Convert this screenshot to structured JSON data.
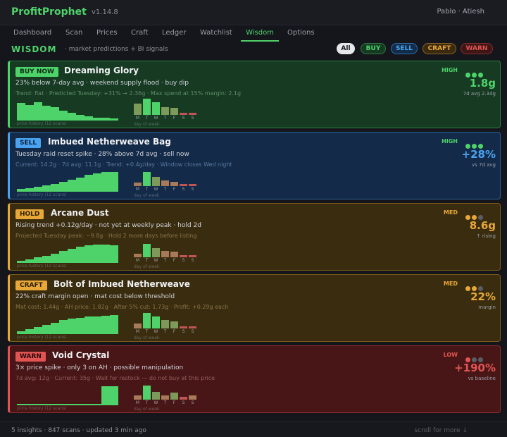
{
  "app": {
    "name": "ProfitProphet",
    "version": "v1.14.8",
    "user": "Pablo · Atiesh"
  },
  "nav": {
    "tabs": [
      "Dashboard",
      "Scan",
      "Prices",
      "Craft",
      "Ledger",
      "Watchlist",
      "Wisdom",
      "Options"
    ],
    "active": "Wisdom"
  },
  "section": {
    "title": "WISDOM",
    "subtitle": "· market predictions + BI signals"
  },
  "filters": [
    "All",
    "BUY",
    "SELL",
    "CRAFT",
    "WARN"
  ],
  "captions": {
    "history": "price history (12 scans)",
    "week": "day of week"
  },
  "weekdays": [
    "M",
    "T",
    "W",
    "T",
    "F",
    "S",
    "S"
  ],
  "colors": {
    "green": "#4ed36a",
    "blue": "#4aa3f0",
    "amber": "#e8a838",
    "red": "#e05454"
  },
  "cards": [
    {
      "badge": "BUY NOW",
      "title": "Dreaming Glory",
      "line1": "23% below 7-day avg · weekend supply flood · buy dip",
      "line2": "Trend: flat · Predicted Tuesday: +31% → 2.36g · Max spend at 15% margin: 2.1g",
      "confidence": "HIGH",
      "confidence_level": 3,
      "value": "1.8g",
      "value_sub": "7d avg 2.34g",
      "history": [
        0.84,
        0.75,
        0.86,
        0.7,
        0.62,
        0.46,
        0.38,
        0.28,
        0.2,
        0.15,
        0.12,
        0.1
      ],
      "week": [
        0.65,
        0.95,
        0.75,
        0.45,
        0.42,
        0.14,
        0.14
      ]
    },
    {
      "badge": "SELL",
      "title": "Imbued Netherweave Bag",
      "line1": "Tuesday raid reset spike · 28% above 7d avg · sell now",
      "line2": "Current: 14.2g · 7d avg: 11.1g · Trend: +0.4g/day · Window closes Wed night",
      "confidence": "HIGH",
      "confidence_level": 3,
      "value": "+28%",
      "value_sub": "vs 7d avg",
      "history": [
        0.12,
        0.17,
        0.25,
        0.3,
        0.36,
        0.46,
        0.56,
        0.66,
        0.8,
        0.88,
        0.92,
        0.92
      ],
      "week": [
        0.22,
        0.82,
        0.55,
        0.33,
        0.25,
        0.12,
        0.12
      ]
    },
    {
      "badge": "HOLD",
      "title": "Arcane Dust",
      "line1": "Rising trend +0.12g/day · not yet at weekly peak · hold 2d",
      "line2": "Projected Tuesday peak: ~9.8g · Hold 2 more days before listing",
      "confidence": "MED",
      "confidence_level": 2,
      "value": "8.6g",
      "value_sub": "↑ rising",
      "history": [
        0.1,
        0.18,
        0.26,
        0.35,
        0.45,
        0.58,
        0.68,
        0.76,
        0.82,
        0.86,
        0.88,
        0.85
      ],
      "week": [
        0.2,
        0.78,
        0.55,
        0.38,
        0.35,
        0.12,
        0.12
      ]
    },
    {
      "badge": "CRAFT",
      "title": "Bolt of Imbued Netherweave",
      "line1": "22% craft margin open · mat cost below threshold",
      "line2": "Mat cost: 1.44g · AH price: 1.82g · After 5% cut: 1.73g · Profit: +0.29g each",
      "confidence": "MED",
      "confidence_level": 2,
      "value": "22%",
      "value_sub": "margin",
      "history": [
        0.15,
        0.25,
        0.33,
        0.42,
        0.55,
        0.66,
        0.74,
        0.78,
        0.82,
        0.85,
        0.88,
        0.9
      ],
      "week": [
        0.3,
        0.9,
        0.72,
        0.48,
        0.42,
        0.12,
        0.12
      ]
    },
    {
      "badge": "WARN",
      "title": "Void Crystal",
      "line1": "3× price spike · only 3 on AH · possible manipulation",
      "line2": "7d avg: 12g · Current: 35g · Wait for restock — do not buy at this price",
      "confidence": "LOW",
      "confidence_level": 1,
      "value": "+190%",
      "value_sub": "vs baseline",
      "history": [
        0.08,
        0.08,
        0.08,
        0.08,
        0.08,
        0.08,
        0.08,
        0.08,
        0.08,
        0.08,
        0.9,
        0.9
      ],
      "week": [
        0.25,
        0.82,
        0.45,
        0.25,
        0.42,
        0.15,
        0.25
      ]
    }
  ],
  "footer": {
    "insights": "5 insights",
    "scans": "847 scans",
    "updated": "updated 3 min ago",
    "scroll": "scroll for more ↓"
  }
}
